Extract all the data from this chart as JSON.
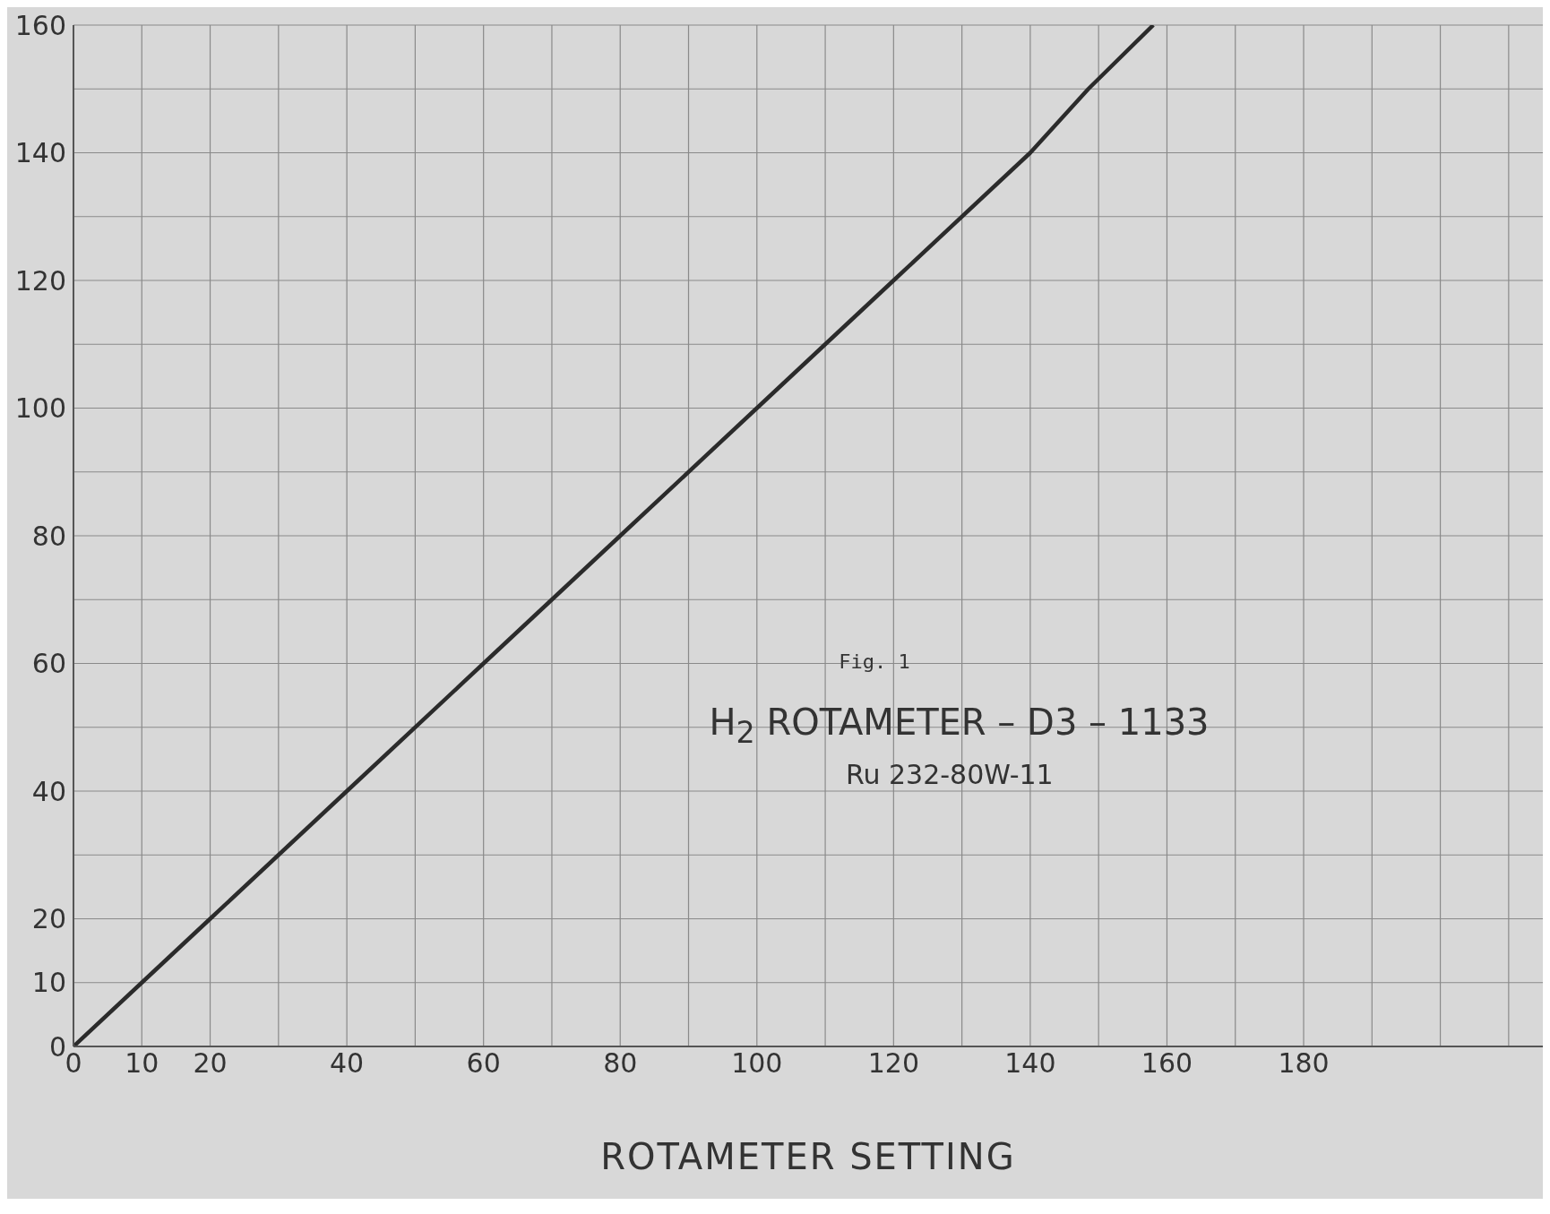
{
  "chart_data": {
    "type": "line",
    "title": "H$_{2}$ ROTAMETER – D3 – 1133",
    "subtitle": "Ru 232-80W-11",
    "xlabel": "ROTAMETER SETTING",
    "annotations": [
      "Fig. 1"
    ],
    "x": [
      0,
      10,
      20,
      40,
      60,
      80,
      100,
      120,
      140,
      148.5,
      158
    ],
    "series": [
      {
        "color": "#2b2b2b",
        "values": [
          0,
          10,
          20,
          40,
          60,
          80,
          100,
          120,
          140,
          150,
          160
        ]
      }
    ],
    "xlim": [
      0,
      215
    ],
    "xticks": [
      0,
      10,
      20,
      {
        "value": 30,
        "label": null
      },
      40,
      {
        "value": 50,
        "label": null
      },
      60,
      {
        "value": 70,
        "label": null
      },
      80,
      {
        "value": 90,
        "label": null
      },
      100,
      {
        "value": 110,
        "label": null
      },
      120,
      {
        "value": 130,
        "label": null
      },
      140,
      {
        "value": 150,
        "label": null
      },
      160,
      {
        "value": 170,
        "label": null
      },
      180,
      {
        "value": 190,
        "label": null
      },
      {
        "value": 200,
        "label": null
      },
      {
        "value": 210,
        "label": null
      }
    ],
    "ylim": [
      0,
      160
    ],
    "yticks": [
      0,
      10,
      20,
      {
        "value": 30,
        "label": null
      },
      40,
      {
        "value": 50,
        "label": null
      },
      60,
      {
        "value": 70,
        "label": null
      },
      80,
      {
        "value": 90,
        "label": null
      },
      100,
      {
        "value": 110,
        "label": null
      },
      120,
      {
        "value": 130,
        "label": null
      },
      140,
      {
        "value": 150,
        "label": null
      },
      160
    ],
    "grid": true,
    "legend": false,
    "marker": "none",
    "line_style": "solid"
  }
}
